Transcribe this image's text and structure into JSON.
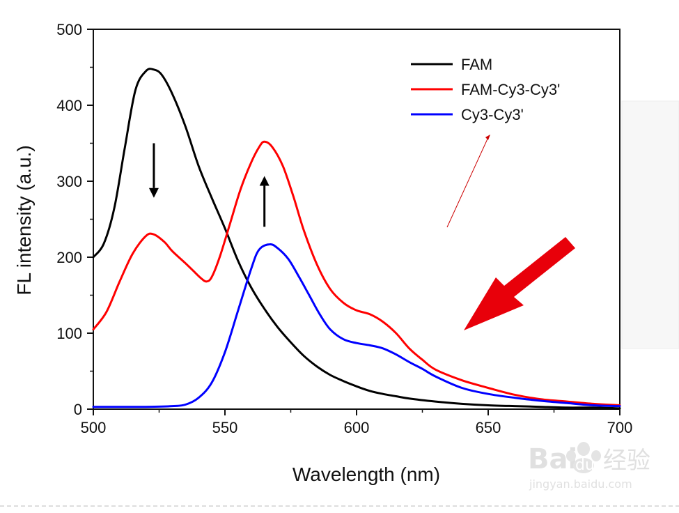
{
  "chart_data": {
    "type": "line",
    "title": "",
    "xlabel": "Wavelength (nm)",
    "ylabel": "FL intensity (a.u.)",
    "xlim": [
      500,
      700
    ],
    "ylim": [
      0,
      500
    ],
    "xticks": [
      "500",
      "550",
      "600",
      "650",
      "700"
    ],
    "yticks": [
      "0",
      "100",
      "200",
      "300",
      "400",
      "500"
    ],
    "grid": false,
    "legend_position": "top-right",
    "series": [
      {
        "name": "FAM",
        "color": "#000000",
        "points": [
          [
            500,
            200
          ],
          [
            504,
            218
          ],
          [
            508,
            265
          ],
          [
            512,
            345
          ],
          [
            516,
            420
          ],
          [
            520,
            445
          ],
          [
            523,
            447
          ],
          [
            526,
            440
          ],
          [
            530,
            415
          ],
          [
            535,
            372
          ],
          [
            540,
            320
          ],
          [
            545,
            278
          ],
          [
            550,
            238
          ],
          [
            555,
            195
          ],
          [
            560,
            160
          ],
          [
            565,
            132
          ],
          [
            570,
            108
          ],
          [
            575,
            88
          ],
          [
            580,
            70
          ],
          [
            585,
            56
          ],
          [
            590,
            45
          ],
          [
            595,
            37
          ],
          [
            600,
            30
          ],
          [
            605,
            24
          ],
          [
            610,
            20
          ],
          [
            615,
            17
          ],
          [
            620,
            14
          ],
          [
            630,
            10
          ],
          [
            640,
            7
          ],
          [
            650,
            5
          ],
          [
            660,
            4
          ],
          [
            670,
            3
          ],
          [
            680,
            2
          ],
          [
            690,
            2
          ],
          [
            700,
            1
          ]
        ]
      },
      {
        "name": "FAM-Cy3-Cy3'",
        "color": "#ff0000",
        "points": [
          [
            500,
            105
          ],
          [
            505,
            128
          ],
          [
            510,
            168
          ],
          [
            515,
            205
          ],
          [
            520,
            228
          ],
          [
            523,
            230
          ],
          [
            527,
            220
          ],
          [
            530,
            208
          ],
          [
            535,
            192
          ],
          [
            538,
            182
          ],
          [
            541,
            172
          ],
          [
            543,
            168
          ],
          [
            545,
            174
          ],
          [
            548,
            200
          ],
          [
            552,
            245
          ],
          [
            556,
            290
          ],
          [
            560,
            325
          ],
          [
            563,
            345
          ],
          [
            565,
            352
          ],
          [
            568,
            345
          ],
          [
            572,
            320
          ],
          [
            576,
            280
          ],
          [
            580,
            235
          ],
          [
            585,
            190
          ],
          [
            590,
            158
          ],
          [
            595,
            140
          ],
          [
            600,
            130
          ],
          [
            605,
            125
          ],
          [
            610,
            115
          ],
          [
            615,
            100
          ],
          [
            620,
            80
          ],
          [
            625,
            65
          ],
          [
            630,
            52
          ],
          [
            640,
            38
          ],
          [
            650,
            28
          ],
          [
            660,
            19
          ],
          [
            670,
            13
          ],
          [
            680,
            10
          ],
          [
            690,
            7
          ],
          [
            700,
            5
          ]
        ]
      },
      {
        "name": "Cy3-Cy3'",
        "color": "#0000ff",
        "points": [
          [
            500,
            3
          ],
          [
            510,
            3
          ],
          [
            520,
            3
          ],
          [
            530,
            4
          ],
          [
            535,
            6
          ],
          [
            540,
            15
          ],
          [
            545,
            35
          ],
          [
            550,
            75
          ],
          [
            555,
            130
          ],
          [
            560,
            185
          ],
          [
            563,
            210
          ],
          [
            567,
            217
          ],
          [
            570,
            212
          ],
          [
            574,
            198
          ],
          [
            578,
            175
          ],
          [
            582,
            150
          ],
          [
            586,
            125
          ],
          [
            590,
            105
          ],
          [
            595,
            92
          ],
          [
            600,
            87
          ],
          [
            605,
            84
          ],
          [
            610,
            80
          ],
          [
            615,
            72
          ],
          [
            620,
            62
          ],
          [
            625,
            53
          ],
          [
            630,
            43
          ],
          [
            640,
            28
          ],
          [
            650,
            20
          ],
          [
            660,
            15
          ],
          [
            670,
            11
          ],
          [
            680,
            8
          ],
          [
            690,
            5
          ],
          [
            700,
            4
          ]
        ]
      }
    ],
    "annotations": [
      {
        "type": "arrow-down",
        "x": 523,
        "y_from": 350,
        "y_to": 280,
        "color": "#000000"
      },
      {
        "type": "arrow-up",
        "x": 565,
        "y_from": 240,
        "y_to": 305,
        "color": "#000000"
      }
    ]
  },
  "overlays": {
    "thin_arrow_color": "#cc0000",
    "big_arrow_color": "#e8000a"
  },
  "watermark": {
    "brand": "Bai",
    "brand_suffix": "du",
    "product": "经验",
    "url": "jingyan.baidu.com"
  }
}
